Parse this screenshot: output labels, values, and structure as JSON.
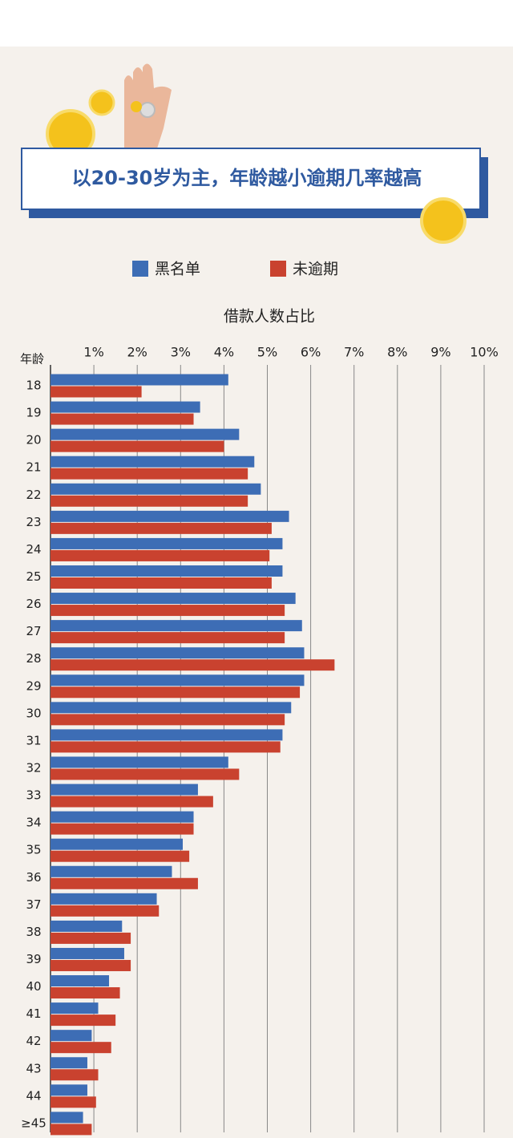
{
  "chart_data": {
    "type": "hbar",
    "title": "以20-30岁为主，年龄越小逾期几率越高",
    "x_label": "借款人数占比",
    "y_label": "年龄",
    "categories": [
      "18",
      "19",
      "20",
      "21",
      "22",
      "23",
      "24",
      "25",
      "26",
      "27",
      "28",
      "29",
      "30",
      "31",
      "32",
      "33",
      "34",
      "35",
      "36",
      "37",
      "38",
      "39",
      "40",
      "41",
      "42",
      "43",
      "44",
      "≥45"
    ],
    "series": [
      {
        "name": "黑名单",
        "color": "#3d6db5",
        "values": [
          4.1,
          3.45,
          4.35,
          4.7,
          4.85,
          5.5,
          5.35,
          5.35,
          5.65,
          5.8,
          5.85,
          5.85,
          5.55,
          5.35,
          4.1,
          3.4,
          3.3,
          3.05,
          2.8,
          2.45,
          1.65,
          1.7,
          1.35,
          1.1,
          0.95,
          0.85,
          0.85,
          0.75
        ]
      },
      {
        "name": "未逾期",
        "color": "#c9422f",
        "values": [
          2.1,
          3.3,
          4.0,
          4.55,
          4.55,
          5.1,
          5.05,
          5.1,
          5.4,
          5.4,
          6.55,
          5.75,
          5.4,
          5.3,
          4.35,
          3.75,
          3.3,
          3.2,
          3.4,
          2.5,
          1.85,
          1.85,
          1.6,
          1.5,
          1.4,
          1.1,
          1.05,
          0.95
        ]
      }
    ],
    "xlim": [
      0,
      10
    ],
    "xticks": [
      {
        "value": 1,
        "label": "1%"
      },
      {
        "value": 2,
        "label": "2%"
      },
      {
        "value": 3,
        "label": "3%"
      },
      {
        "value": 4,
        "label": "4%"
      },
      {
        "value": 5,
        "label": "5%"
      },
      {
        "value": 6,
        "label": "6%"
      },
      {
        "value": 7,
        "label": "7%"
      },
      {
        "value": 8,
        "label": "8%"
      },
      {
        "value": 9,
        "label": "9%"
      },
      {
        "value": 10,
        "label": "10%"
      }
    ],
    "grid": true
  }
}
